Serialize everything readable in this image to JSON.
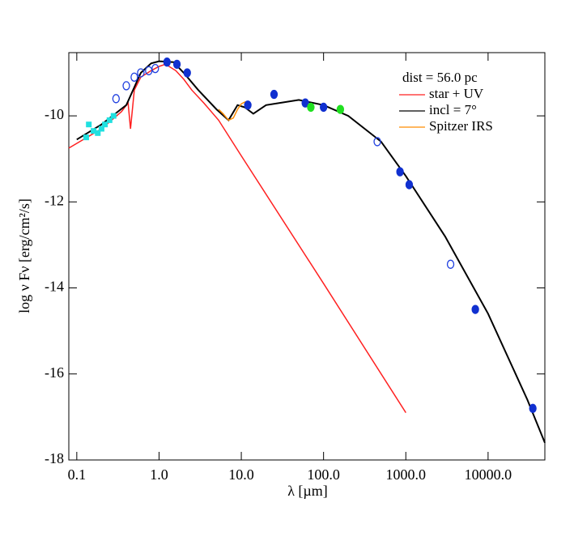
{
  "chart_data": {
    "type": "line",
    "annotation": "dist = 56.0 pc",
    "xlabel": "λ [µm]",
    "ylabel": "log ν Fν [erg/cm²/s]",
    "xscale": "log",
    "xlim": [
      0.08,
      49000
    ],
    "ylim": [
      -18,
      -8.53
    ],
    "xticks": [
      {
        "value": 0.1,
        "label": "0.1"
      },
      {
        "value": 1,
        "label": "1.0"
      },
      {
        "value": 10,
        "label": "10.0"
      },
      {
        "value": 100,
        "label": "100.0"
      },
      {
        "value": 1000,
        "label": "1000.0"
      },
      {
        "value": 10000,
        "label": "10000.0"
      }
    ],
    "yticks": [
      -18,
      -16,
      -14,
      -12,
      -10
    ],
    "legend": "upper right",
    "grid": false,
    "series": [
      {
        "name": "star + UV",
        "color": "#ff2020",
        "mode": "line",
        "x": [
          0.08,
          0.2,
          0.35,
          0.42,
          0.45,
          0.5,
          0.6,
          0.8,
          1.0,
          1.2,
          1.6,
          2.0,
          2.5,
          3.5,
          5.3,
          10,
          100,
          1000
        ],
        "values": [
          -10.75,
          -10.3,
          -9.9,
          -9.7,
          -10.3,
          -9.4,
          -9.1,
          -8.95,
          -8.85,
          -8.8,
          -8.95,
          -9.15,
          -9.4,
          -9.7,
          -10.1,
          -10.93,
          -13.9,
          -16.9
        ]
      },
      {
        "name": "incl = 7°",
        "color": "#000000",
        "mode": "line",
        "x": [
          0.1,
          0.2,
          0.4,
          0.6,
          0.8,
          1.0,
          1.5,
          2.0,
          3.0,
          5.0,
          7.0,
          9.0,
          11.0,
          14.0,
          20,
          50,
          100,
          200,
          500,
          1000,
          3000,
          10000,
          30000,
          49000
        ],
        "values": [
          -10.55,
          -10.2,
          -9.75,
          -9.0,
          -8.78,
          -8.73,
          -8.75,
          -9.0,
          -9.4,
          -9.85,
          -10.1,
          -9.75,
          -9.8,
          -9.95,
          -9.75,
          -9.63,
          -9.75,
          -10.0,
          -10.6,
          -11.4,
          -12.8,
          -14.6,
          -16.6,
          -17.6
        ]
      },
      {
        "name": "Spitzer IRS",
        "color": "#ff8c00",
        "mode": "line",
        "x": [
          5.3,
          6.0,
          7.0,
          8.0,
          9.0,
          10.0,
          11.0,
          12.0
        ],
        "values": [
          -9.85,
          -9.95,
          -10.1,
          -10.05,
          -9.85,
          -9.72,
          -9.68,
          -9.66
        ]
      },
      {
        "color": "#20e0e0",
        "mode": "points",
        "marker": "square",
        "x": [
          0.13,
          0.14,
          0.16,
          0.18,
          0.2,
          0.22,
          0.25,
          0.28
        ],
        "values": [
          -10.5,
          -10.2,
          -10.35,
          -10.4,
          -10.3,
          -10.2,
          -10.1,
          -10.0
        ]
      },
      {
        "color": "#2040e0",
        "mode": "points",
        "marker": "open",
        "x": [
          0.3,
          0.4,
          0.5,
          0.6,
          0.75,
          0.9,
          450,
          3500
        ],
        "values": [
          -9.6,
          -9.3,
          -9.1,
          -9.0,
          -8.95,
          -8.9,
          -10.6,
          -13.45
        ]
      },
      {
        "color": "#1030d0",
        "mode": "points",
        "marker": "filled",
        "x": [
          1.25,
          1.65,
          2.2,
          12,
          25,
          60,
          100,
          850,
          1100,
          7000,
          35000
        ],
        "values": [
          -8.75,
          -8.8,
          -9.0,
          -9.75,
          -9.5,
          -9.7,
          -9.8,
          -11.3,
          -11.6,
          -14.5,
          -16.8
        ]
      },
      {
        "color": "#20e020",
        "mode": "points",
        "marker": "filled",
        "x": [
          70,
          160
        ],
        "values": [
          -9.8,
          -9.85
        ]
      }
    ]
  }
}
